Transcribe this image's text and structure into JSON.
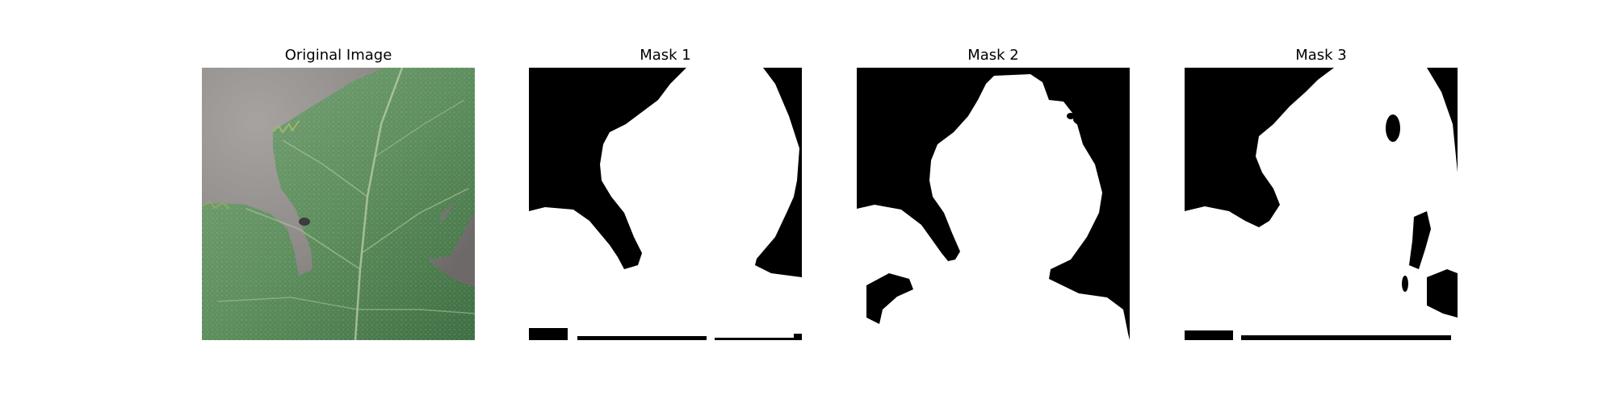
{
  "figure": {
    "panels": [
      {
        "title": "Original Image",
        "kind": "photo",
        "subject": "leaf"
      },
      {
        "title": "Mask 1",
        "kind": "mask"
      },
      {
        "title": "Mask 2",
        "kind": "mask"
      },
      {
        "title": "Mask 3",
        "kind": "mask"
      }
    ]
  },
  "colors": {
    "background": "#ffffff",
    "mask_foreground": "#ffffff",
    "mask_background": "#000000",
    "leaf": "#5f8f5e",
    "photo_background": "#8a8684"
  }
}
